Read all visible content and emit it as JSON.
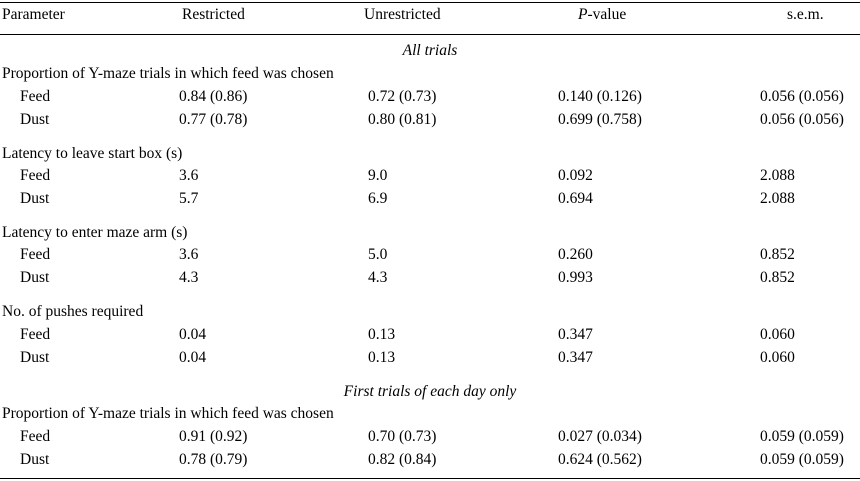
{
  "headers": {
    "parameter": "Parameter",
    "restricted": "Restricted",
    "unrestricted": "Unrestricted",
    "p_italic": "P",
    "p_rest": "-value",
    "sem": "s.e.m."
  },
  "sections": [
    {
      "title": "All trials",
      "groups": [
        {
          "label": "Proportion of Y-maze trials in which feed was chosen",
          "rows": [
            {
              "name": "Feed",
              "restricted": "0.84 (0.86)",
              "unrestricted": "0.72 (0.73)",
              "p": "0.140 (0.126)",
              "sem": "0.056 (0.056)"
            },
            {
              "name": "Dust",
              "restricted": "0.77 (0.78)",
              "unrestricted": "0.80 (0.81)",
              "p": "0.699 (0.758)",
              "sem": "0.056 (0.056)"
            }
          ]
        },
        {
          "label": "Latency to leave start box (s)",
          "rows": [
            {
              "name": "Feed",
              "restricted": "3.6",
              "unrestricted": "9.0",
              "p": "0.092",
              "sem": "2.088"
            },
            {
              "name": "Dust",
              "restricted": "5.7",
              "unrestricted": "6.9",
              "p": "0.694",
              "sem": "2.088"
            }
          ]
        },
        {
          "label": "Latency to enter maze arm (s)",
          "rows": [
            {
              "name": "Feed",
              "restricted": "3.6",
              "unrestricted": "5.0",
              "p": "0.260",
              "sem": "0.852"
            },
            {
              "name": "Dust",
              "restricted": "4.3",
              "unrestricted": "4.3",
              "p": "0.993",
              "sem": "0.852"
            }
          ]
        },
        {
          "label": "No. of pushes required",
          "rows": [
            {
              "name": "Feed",
              "restricted": "0.04",
              "unrestricted": "0.13",
              "p": "0.347",
              "sem": "0.060"
            },
            {
              "name": "Dust",
              "restricted": "0.04",
              "unrestricted": "0.13",
              "p": "0.347",
              "sem": "0.060"
            }
          ]
        }
      ]
    },
    {
      "title": "First trials of each day only",
      "groups": [
        {
          "label": "Proportion of Y-maze trials in which feed was chosen",
          "rows": [
            {
              "name": "Feed",
              "restricted": "0.91 (0.92)",
              "unrestricted": "0.70 (0.73)",
              "p": "0.027 (0.034)",
              "sem": "0.059 (0.059)"
            },
            {
              "name": "Dust",
              "restricted": "0.78 (0.79)",
              "unrestricted": "0.82 (0.84)",
              "p": "0.624 (0.562)",
              "sem": "0.059 (0.059)"
            }
          ]
        }
      ]
    }
  ]
}
